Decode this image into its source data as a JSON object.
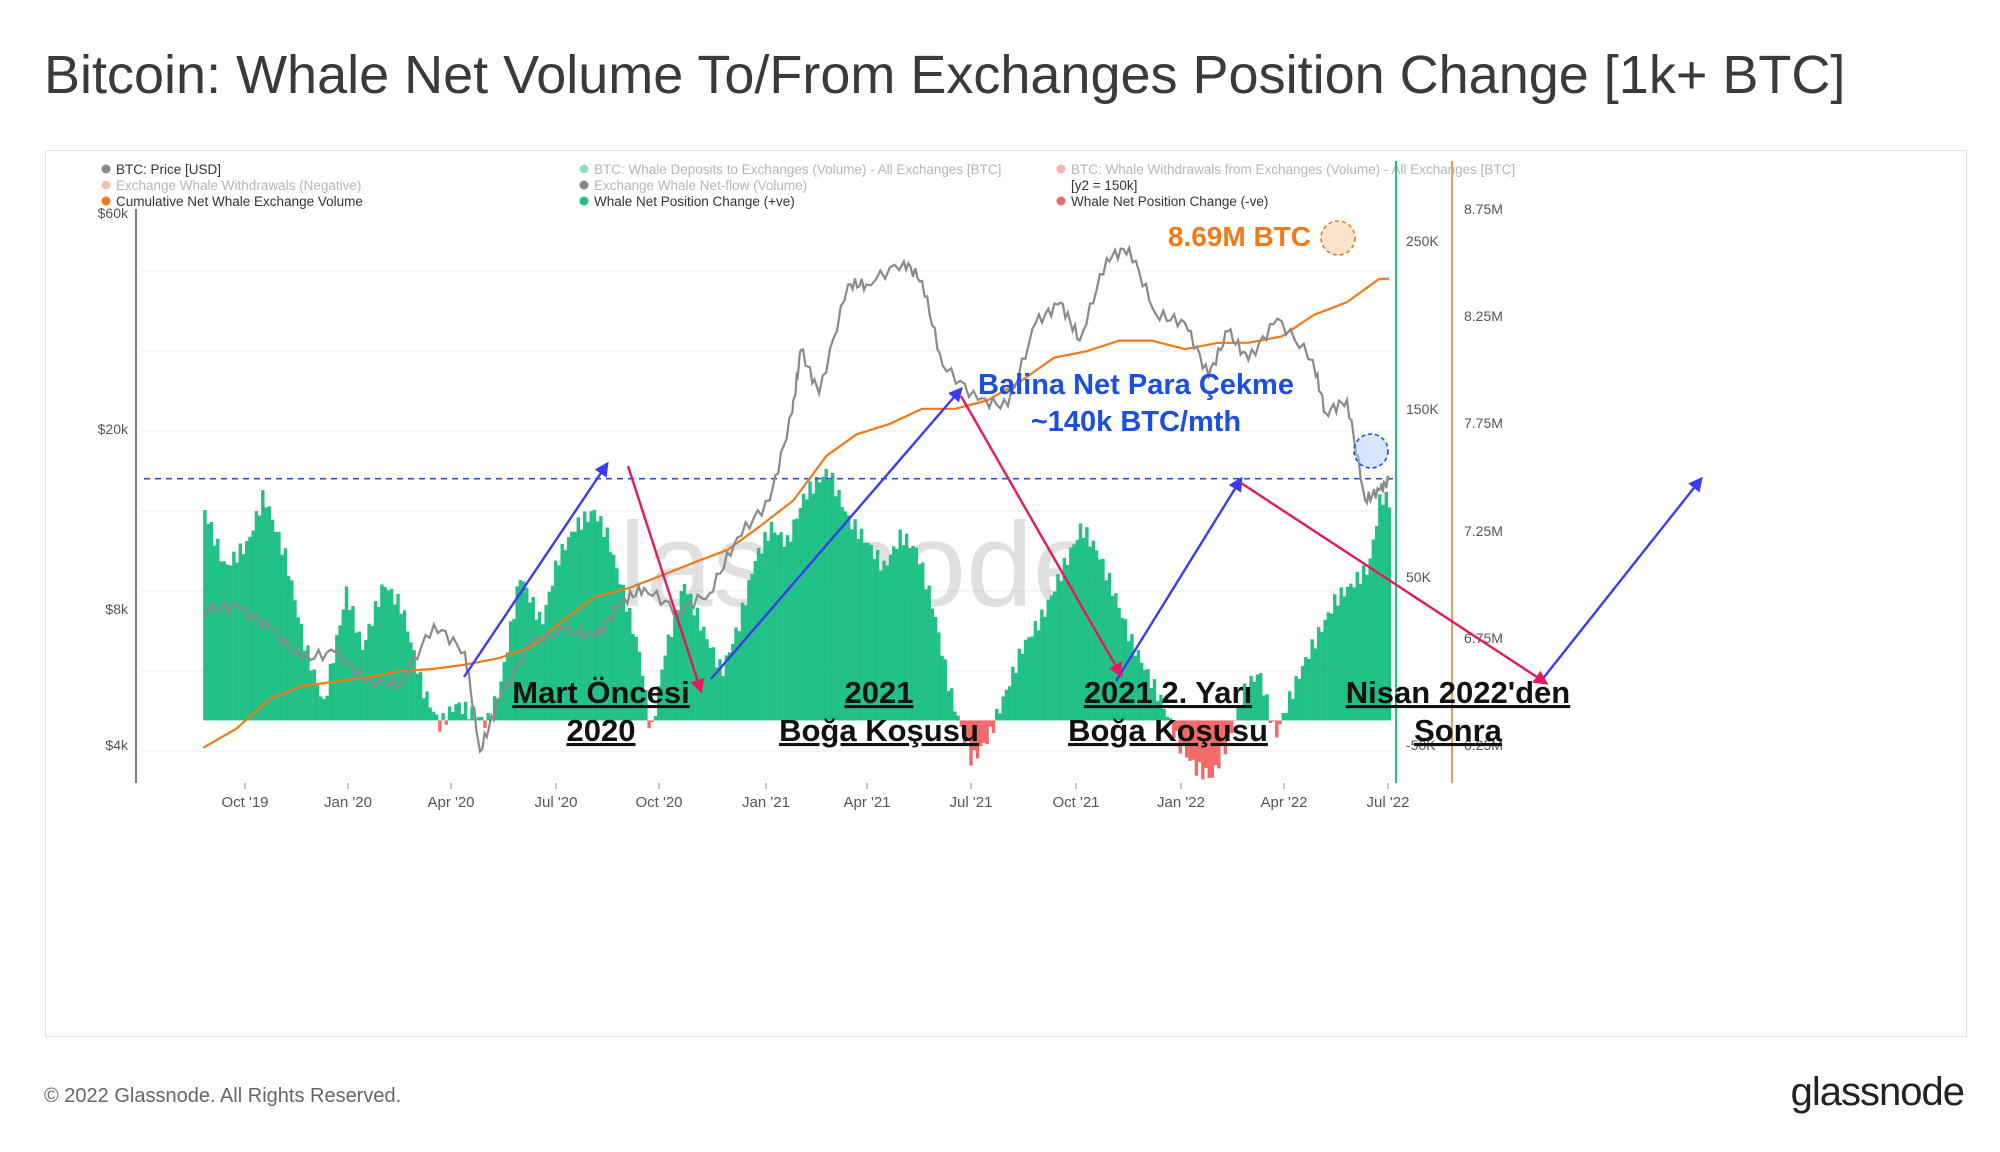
{
  "title": "Bitcoin: Whale Net Volume To/From Exchanges Position Change [1k+ BTC]",
  "footer": "© 2022 Glassnode. All Rights Reserved.",
  "brand": "glassnode",
  "watermark": "glassnode",
  "legend": [
    {
      "label": "BTC: Price [USD]",
      "color": "#8a8a8a",
      "faded": false
    },
    {
      "label": "BTC: Whale Deposits to Exchanges (Volume) - All Exchanges [BTC]",
      "color": "#21c087",
      "faded": true
    },
    {
      "label": "BTC: Whale Withdrawals from Exchanges (Volume) - All Exchanges [BTC]",
      "color": "#f06a6a",
      "faded": true
    },
    {
      "label": "Exchange Whale Withdrawals (Negative)",
      "color": "#e8835a",
      "faded": true
    },
    {
      "label": "Exchange Whale Net-flow (Volume)",
      "color": "#111111",
      "faded": true
    },
    {
      "label": "[y2 = 150k]",
      "color": "",
      "faded": false
    },
    {
      "label": "Cumulative Net Whale Exchange Volume",
      "color": "#f07a18",
      "faded": false
    },
    {
      "label": "Whale Net Position Change (+ve)",
      "color": "#21c087",
      "faded": false
    },
    {
      "label": "Whale Net Position Change (-ve)",
      "color": "#f06a6a",
      "faded": false
    }
  ],
  "colors": {
    "price": "#8a8a8a",
    "positive": "#21c087",
    "negative": "#f06a6a",
    "cumulative": "#f07a18",
    "annotation_blue": "#1a4fe0",
    "up_arrow": "#3b3bf0",
    "down_arrow": "#e8175d"
  },
  "annotations": {
    "top_right_value": "8.69M BTC",
    "withdrawal_line1": "Balina Net Para Çekme",
    "withdrawal_line2": "~140k BTC/mth",
    "phase1_line1": "Mart Öncesi",
    "phase1_line2": "2020",
    "phase2_line1": "2021",
    "phase2_line2": "Boğa Koşusu",
    "phase3_line1": "2021 2. Yarı",
    "phase3_line2": "Boğa Koşusu",
    "phase4_line1": "Nisan 2022'den",
    "phase4_line2": "Sonra"
  },
  "chart_data": {
    "type": "area",
    "x_ticks": [
      "Oct '19",
      "Jan '20",
      "Apr '20",
      "Jul '20",
      "Oct '20",
      "Jan '21",
      "Apr '21",
      "Jul '21",
      "Oct '21",
      "Jan '22",
      "Apr '22",
      "Jul '22"
    ],
    "y_left_ticks": [
      "$60k",
      "$20k",
      "$8k",
      "$4k"
    ],
    "y_left_scale": "log",
    "y_right1_ticks": [
      "250K",
      "150K",
      "50K",
      "-50K"
    ],
    "y_right1_range": [
      -50000,
      300000
    ],
    "y_right2_ticks": [
      "8.75M",
      "8.25M",
      "7.75M",
      "7.25M",
      "6.75M",
      "6.25M"
    ],
    "y_right2_range": [
      6250000,
      8750000
    ],
    "reference_line": {
      "label": "[y2 = 150k]",
      "value": 150000
    },
    "series": [
      {
        "name": "BTC: Price [USD]",
        "axis": "left",
        "points": [
          [
            "2019-07-01",
            10500
          ],
          [
            "2019-08-01",
            10800
          ],
          [
            "2019-09-01",
            9600
          ],
          [
            "2019-10-01",
            8200
          ],
          [
            "2019-11-01",
            8500
          ],
          [
            "2019-12-01",
            7300
          ],
          [
            "2020-01-01",
            7200
          ],
          [
            "2020-02-01",
            9800
          ],
          [
            "2020-03-01",
            8500
          ],
          [
            "2020-03-15",
            5100
          ],
          [
            "2020-04-01",
            6600
          ],
          [
            "2020-05-01",
            8900
          ],
          [
            "2020-06-01",
            9500
          ],
          [
            "2020-07-01",
            9200
          ],
          [
            "2020-07-25",
            11000
          ],
          [
            "2020-08-15",
            11800
          ],
          [
            "2020-09-15",
            10500
          ],
          [
            "2020-10-15",
            11500
          ],
          [
            "2020-11-10",
            15300
          ],
          [
            "2020-12-10",
            18500
          ],
          [
            "2020-12-31",
            29000
          ],
          [
            "2021-01-08",
            40000
          ],
          [
            "2021-01-25",
            32000
          ],
          [
            "2021-02-21",
            56000
          ],
          [
            "2021-03-10",
            56000
          ],
          [
            "2021-04-14",
            63000
          ],
          [
            "2021-05-01",
            57000
          ],
          [
            "2021-05-20",
            37000
          ],
          [
            "2021-06-22",
            31000
          ],
          [
            "2021-07-20",
            30000
          ],
          [
            "2021-08-15",
            46000
          ],
          [
            "2021-09-07",
            51000
          ],
          [
            "2021-09-25",
            42000
          ],
          [
            "2021-10-20",
            64000
          ],
          [
            "2021-11-10",
            67500
          ],
          [
            "2021-12-05",
            48000
          ],
          [
            "2022-01-01",
            46000
          ],
          [
            "2022-01-23",
            35000
          ],
          [
            "2022-02-10",
            44000
          ],
          [
            "2022-03-01",
            38000
          ],
          [
            "2022-03-28",
            47000
          ],
          [
            "2022-04-30",
            38000
          ],
          [
            "2022-05-12",
            29000
          ],
          [
            "2022-06-01",
            31000
          ],
          [
            "2022-06-18",
            18500
          ],
          [
            "2022-07-01",
            19500
          ],
          [
            "2022-07-10",
            20500
          ]
        ]
      },
      {
        "name": "Cumulative Net Whale Exchange Volume",
        "axis": "right2",
        "points": [
          [
            "2019-07-01",
            6490000
          ],
          [
            "2019-08-01",
            6580000
          ],
          [
            "2019-09-01",
            6720000
          ],
          [
            "2019-10-01",
            6780000
          ],
          [
            "2019-11-01",
            6800000
          ],
          [
            "2019-12-01",
            6820000
          ],
          [
            "2020-01-01",
            6850000
          ],
          [
            "2020-02-01",
            6860000
          ],
          [
            "2020-03-01",
            6880000
          ],
          [
            "2020-04-01",
            6910000
          ],
          [
            "2020-05-01",
            6960000
          ],
          [
            "2020-06-01",
            7090000
          ],
          [
            "2020-07-01",
            7200000
          ],
          [
            "2020-08-01",
            7240000
          ],
          [
            "2020-09-01",
            7300000
          ],
          [
            "2020-10-01",
            7360000
          ],
          [
            "2020-11-01",
            7420000
          ],
          [
            "2020-12-01",
            7530000
          ],
          [
            "2021-01-01",
            7650000
          ],
          [
            "2021-02-01",
            7860000
          ],
          [
            "2021-03-01",
            7960000
          ],
          [
            "2021-04-01",
            8010000
          ],
          [
            "2021-05-01",
            8080000
          ],
          [
            "2021-06-01",
            8080000
          ],
          [
            "2021-07-01",
            8120000
          ],
          [
            "2021-08-01",
            8210000
          ],
          [
            "2021-09-01",
            8320000
          ],
          [
            "2021-10-01",
            8350000
          ],
          [
            "2021-11-01",
            8400000
          ],
          [
            "2021-12-01",
            8400000
          ],
          [
            "2022-01-01",
            8360000
          ],
          [
            "2022-02-01",
            8390000
          ],
          [
            "2022-03-01",
            8390000
          ],
          [
            "2022-04-01",
            8420000
          ],
          [
            "2022-05-01",
            8520000
          ],
          [
            "2022-06-01",
            8580000
          ],
          [
            "2022-07-01",
            8690000
          ],
          [
            "2022-07-10",
            8690000
          ]
        ]
      },
      {
        "name": "Whale Net Position Change",
        "axis": "right1",
        "points": [
          [
            "2019-07-01",
            130000
          ],
          [
            "2019-07-20",
            95000
          ],
          [
            "2019-08-10",
            110000
          ],
          [
            "2019-08-25",
            140000
          ],
          [
            "2019-09-15",
            100000
          ],
          [
            "2019-10-01",
            50000
          ],
          [
            "2019-10-20",
            10000
          ],
          [
            "2019-11-10",
            80000
          ],
          [
            "2019-11-25",
            45000
          ],
          [
            "2019-12-15",
            85000
          ],
          [
            "2020-01-01",
            70000
          ],
          [
            "2020-01-20",
            20000
          ],
          [
            "2020-02-05",
            -3000
          ],
          [
            "2020-02-20",
            10000
          ],
          [
            "2020-03-05",
            5000
          ],
          [
            "2020-03-20",
            -2000
          ],
          [
            "2020-04-01",
            20000
          ],
          [
            "2020-04-20",
            90000
          ],
          [
            "2020-05-10",
            60000
          ],
          [
            "2020-05-25",
            100000
          ],
          [
            "2020-06-10",
            120000
          ],
          [
            "2020-06-28",
            130000
          ],
          [
            "2020-07-10",
            115000
          ],
          [
            "2020-07-25",
            80000
          ],
          [
            "2020-08-10",
            40000
          ],
          [
            "2020-08-20",
            -10000
          ],
          [
            "2020-09-01",
            40000
          ],
          [
            "2020-09-20",
            85000
          ],
          [
            "2020-10-05",
            60000
          ],
          [
            "2020-10-25",
            30000
          ],
          [
            "2020-11-10",
            60000
          ],
          [
            "2020-11-25",
            100000
          ],
          [
            "2020-12-10",
            120000
          ],
          [
            "2020-12-25",
            110000
          ],
          [
            "2021-01-10",
            140000
          ],
          [
            "2021-02-01",
            155000
          ],
          [
            "2021-02-20",
            125000
          ],
          [
            "2021-03-10",
            110000
          ],
          [
            "2021-03-25",
            95000
          ],
          [
            "2021-04-10",
            115000
          ],
          [
            "2021-04-25",
            105000
          ],
          [
            "2021-05-10",
            70000
          ],
          [
            "2021-05-25",
            20000
          ],
          [
            "2021-06-05",
            -5000
          ],
          [
            "2021-06-15",
            -25000
          ],
          [
            "2021-07-01",
            -10000
          ],
          [
            "2021-07-15",
            15000
          ],
          [
            "2021-08-01",
            45000
          ],
          [
            "2021-08-20",
            65000
          ],
          [
            "2021-09-05",
            90000
          ],
          [
            "2021-09-25",
            120000
          ],
          [
            "2021-10-10",
            105000
          ],
          [
            "2021-10-25",
            80000
          ],
          [
            "2021-11-10",
            50000
          ],
          [
            "2021-11-25",
            30000
          ],
          [
            "2021-12-10",
            10000
          ],
          [
            "2021-12-25",
            -15000
          ],
          [
            "2022-01-10",
            -30000
          ],
          [
            "2022-01-25",
            -35000
          ],
          [
            "2022-02-10",
            -10000
          ],
          [
            "2022-02-25",
            20000
          ],
          [
            "2022-03-10",
            30000
          ],
          [
            "2022-03-25",
            -10000
          ],
          [
            "2022-04-05",
            10000
          ],
          [
            "2022-04-20",
            35000
          ],
          [
            "2022-05-05",
            55000
          ],
          [
            "2022-05-20",
            75000
          ],
          [
            "2022-06-05",
            85000
          ],
          [
            "2022-06-20",
            95000
          ],
          [
            "2022-07-01",
            140000
          ],
          [
            "2022-07-10",
            135000
          ]
        ]
      }
    ]
  }
}
